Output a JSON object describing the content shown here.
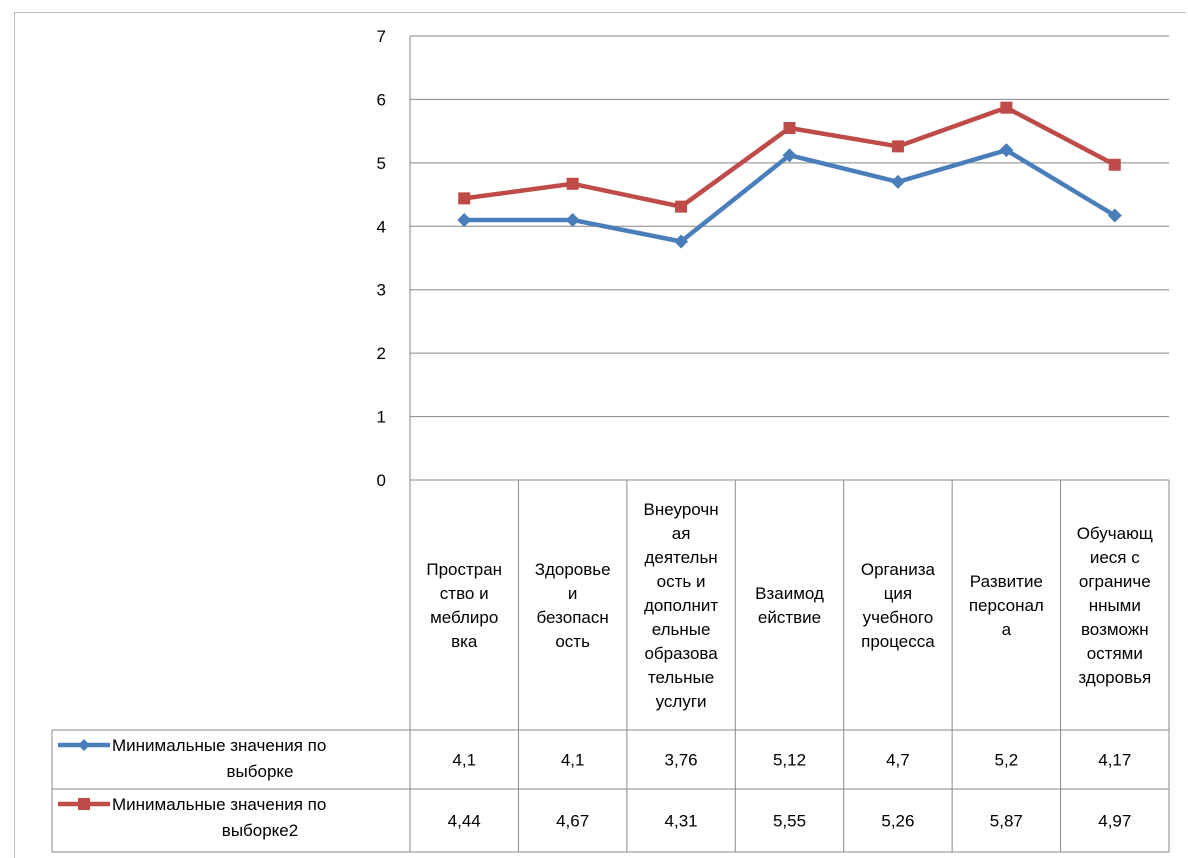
{
  "chart_data": {
    "type": "line",
    "categories": [
      "Пространство и меблировка",
      "Здоровье и безопасность",
      "Внеурочная деятельность и дополнительные образовательные услуги",
      "Взаимодействие",
      "Организация учебного процесса",
      "Развитие персонала",
      "Обучающиеся с ограниченными возможностями здоровья"
    ],
    "category_lines": [
      [
        "Простран",
        "ство и",
        "меблиро",
        "вка"
      ],
      [
        "Здоровье",
        "и",
        "безопасн",
        "ость"
      ],
      [
        "Внеурочн",
        "ая",
        "деятельн",
        "ость и",
        "дополнит",
        "ельные",
        "образова",
        "тельные",
        "услуги"
      ],
      [
        "Взаимод",
        "ействие"
      ],
      [
        "Организа",
        "ция",
        "учебного",
        "процесса"
      ],
      [
        "Развитие",
        "персонал",
        "а"
      ],
      [
        "Обучающ",
        "иеся с",
        "ограниче",
        "нными",
        "возможн",
        "остями",
        "здоровья"
      ]
    ],
    "series": [
      {
        "name": "Минимальные значения по выборке",
        "name_lines": [
          "Минимальные значения по",
          "выборке"
        ],
        "values": [
          4.1,
          4.1,
          3.76,
          5.12,
          4.7,
          5.2,
          4.17
        ],
        "labels": [
          "4,1",
          "4,1",
          "3,76",
          "5,12",
          "4,7",
          "5,2",
          "4,17"
        ],
        "color": "#4a7ebb",
        "marker": "diamond"
      },
      {
        "name": "Минимальные значения по выборке2",
        "name_lines": [
          "Минимальные значения по",
          "выборке2"
        ],
        "values": [
          4.44,
          4.67,
          4.31,
          5.55,
          5.26,
          5.87,
          4.97
        ],
        "labels": [
          "4,44",
          "4,67",
          "4,31",
          "5,55",
          "5,26",
          "5,87",
          "4,97"
        ],
        "color": "#be4b48",
        "marker": "square"
      }
    ],
    "ylim": [
      0,
      7
    ],
    "yticks": [
      0,
      1,
      2,
      3,
      4,
      5,
      6,
      7
    ],
    "grid": true,
    "legend": "data-table"
  }
}
